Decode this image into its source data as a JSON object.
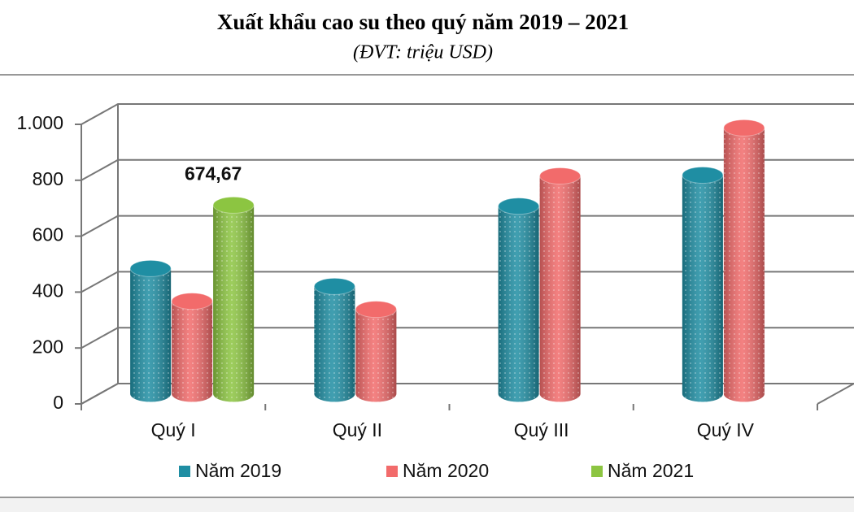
{
  "chart_data": {
    "type": "bar3d",
    "title": "Xuất khẩu cao su theo quý năm 2019 – 2021",
    "subtitle": "(ĐVT: triệu USD)",
    "categories": [
      "Quý I",
      "Quý II",
      "Quý III",
      "Quý IV"
    ],
    "series": [
      {
        "name": "Năm 2019",
        "color": "#1f8ea3",
        "values": [
          448,
          384,
          671,
          782
        ]
      },
      {
        "name": "Năm 2020",
        "color": "#f26b6b",
        "values": [
          331,
          302,
          779,
          951
        ]
      },
      {
        "name": "Năm 2021",
        "color": "#8cc541",
        "values": [
          674.67,
          null,
          null,
          null
        ],
        "value_labels": [
          "674,67",
          null,
          null,
          null
        ]
      }
    ],
    "ylim": [
      0,
      1000
    ],
    "yticks": [
      0,
      200,
      400,
      600,
      800,
      {
        "value": 1000,
        "label": "1.000"
      }
    ],
    "grid": true
  }
}
